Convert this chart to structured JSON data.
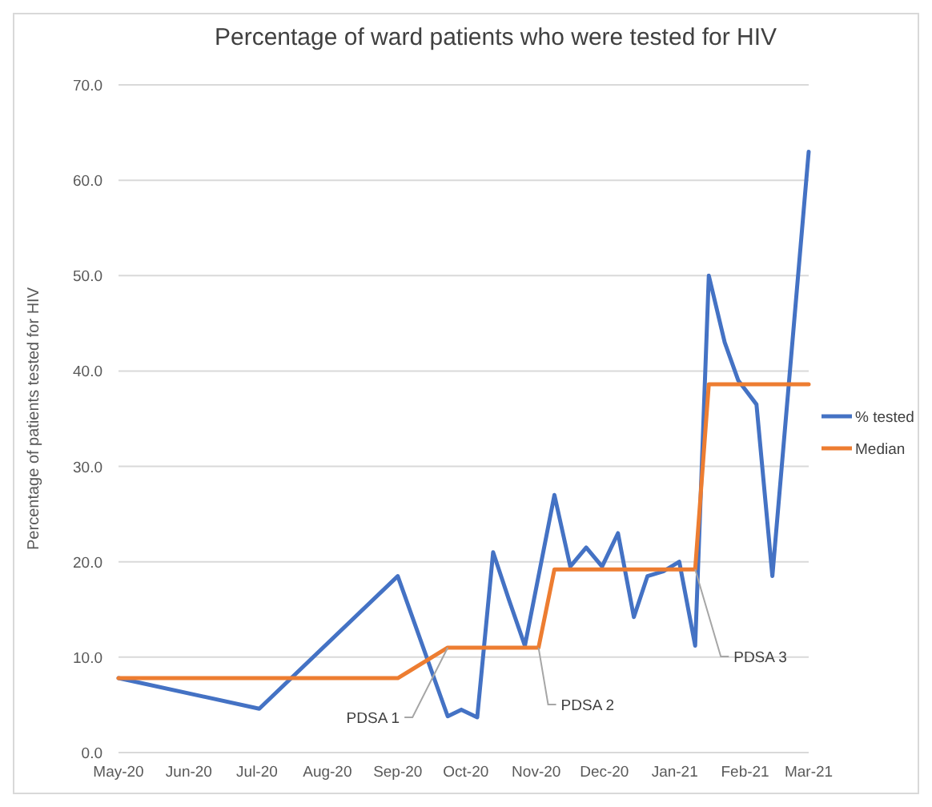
{
  "chart_data": {
    "type": "line",
    "title": "Percentage of ward patients who were tested for HIV",
    "ylabel": "Percentage of patients tested for HIV",
    "series": [
      {
        "name": "% tested",
        "color": "#4472c4",
        "x": [
          "2020-05-01",
          "2020-07-02",
          "2020-09-01",
          "2020-09-23",
          "2020-09-29",
          "2020-10-06",
          "2020-10-13",
          "2020-10-20",
          "2020-10-27",
          "2020-11-09",
          "2020-11-16",
          "2020-11-23",
          "2020-11-30",
          "2020-12-07",
          "2020-12-14",
          "2020-12-20",
          "2020-12-27",
          "2021-01-03",
          "2021-01-10",
          "2021-01-16",
          "2021-01-23",
          "2021-01-29",
          "2021-02-06",
          "2021-02-13",
          "2021-03-01"
        ],
        "values": [
          7.8,
          4.6,
          18.5,
          3.8,
          4.5,
          3.7,
          21,
          16,
          11.2,
          27,
          19.5,
          21.5,
          19.5,
          23,
          14.2,
          18.5,
          19,
          20,
          11.2,
          50,
          43,
          39,
          36.5,
          18.5,
          63
        ]
      },
      {
        "name": "Median",
        "color": "#ed7d31",
        "x": [
          "2020-05-01",
          "2020-09-01",
          "2020-09-23",
          "2020-11-02",
          "2020-11-09",
          "2021-01-10",
          "2021-01-16",
          "2021-03-01"
        ],
        "values": [
          7.8,
          7.8,
          11,
          11,
          19.2,
          19.2,
          38.6,
          38.6
        ]
      }
    ],
    "annotations": [
      {
        "text": "PDSA 1",
        "x": "2020-09-23",
        "y": 11
      },
      {
        "text": "PDSA 2",
        "x": "2020-11-02",
        "y": 11
      },
      {
        "text": "PDSA 3",
        "x": "2021-01-10",
        "y": 19.2
      }
    ],
    "xlim": [
      "2020-05-01",
      "2021-03-01"
    ],
    "xticks": [
      {
        "value": "2020-05-01",
        "label": "May-20"
      },
      {
        "value": "2020-06-01",
        "label": "Jun-20"
      },
      {
        "value": "2020-07-01",
        "label": "Jul-20"
      },
      {
        "value": "2020-08-01",
        "label": "Aug-20"
      },
      {
        "value": "2020-09-01",
        "label": "Sep-20"
      },
      {
        "value": "2020-10-01",
        "label": "Oct-20"
      },
      {
        "value": "2020-11-01",
        "label": "Nov-20"
      },
      {
        "value": "2020-12-01",
        "label": "Dec-20"
      },
      {
        "value": "2021-01-01",
        "label": "Jan-21"
      },
      {
        "value": "2021-02-01",
        "label": "Feb-21"
      },
      {
        "value": "2021-03-01",
        "label": "Mar-21"
      }
    ],
    "ylim": [
      0,
      70
    ],
    "yticks": [
      {
        "value": 0,
        "label": "0.0"
      },
      {
        "value": 10,
        "label": "10.0"
      },
      {
        "value": 20,
        "label": "20.0"
      },
      {
        "value": 30,
        "label": "30.0"
      },
      {
        "value": 40,
        "label": "40.0"
      },
      {
        "value": 50,
        "label": "50.0"
      },
      {
        "value": 60,
        "label": "60.0"
      },
      {
        "value": 70,
        "label": "70.0"
      }
    ],
    "grid": "y",
    "legend": "right",
    "marker": "none",
    "line_style": "solid"
  }
}
